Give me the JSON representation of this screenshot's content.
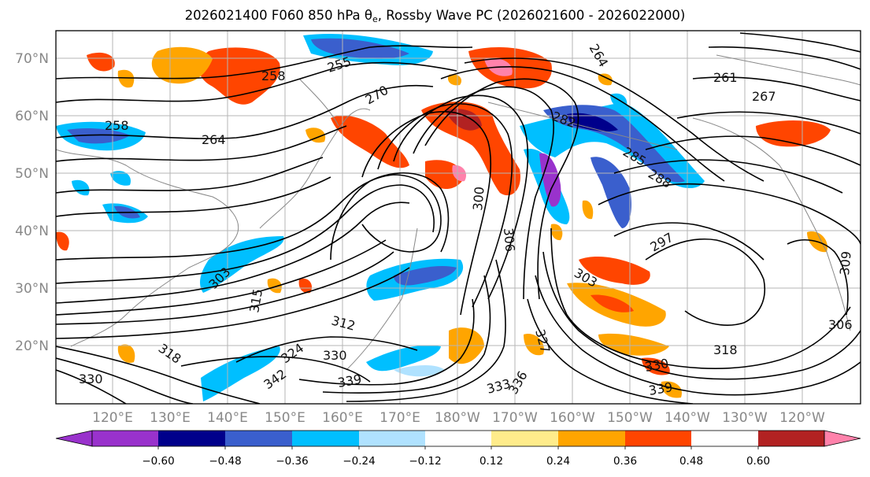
{
  "title": {
    "main": "2026021400 F060 850 hPa θ",
    "subscript": "e",
    "suffix": ", Rossby Wave PC (2026021600 - 2026022000)"
  },
  "lat_labels": [
    "70°N",
    "60°N",
    "50°N",
    "40°N",
    "30°N",
    "20°N"
  ],
  "lon_labels": [
    "120°E",
    "130°E",
    "140°E",
    "150°E",
    "160°E",
    "170°E",
    "180°W",
    "170°W",
    "160°W",
    "150°W",
    "140°W",
    "130°W",
    "120°W"
  ],
  "colorbar": {
    "colors": [
      "#9932CC",
      "#00008B",
      "#3A5FCD",
      "#00BFFF",
      "#B0E2FF",
      "#FFFFFF",
      "#FFEC8B",
      "#FFA500",
      "#FF4500",
      "#B22222",
      "#FF82AB"
    ],
    "ticks": [
      "−0.60",
      "−0.48",
      "−0.36",
      "−0.24",
      "−0.12",
      "0.12",
      "0.24",
      "0.36",
      "0.48",
      "0.60"
    ]
  },
  "contour_labels": [
    "258",
    "258",
    "255",
    "264",
    "264",
    "270",
    "261",
    "267",
    "282",
    "285",
    "288",
    "297",
    "300",
    "303",
    "303",
    "306",
    "306",
    "309",
    "312",
    "315",
    "318",
    "318",
    "324",
    "327",
    "330",
    "330",
    "330",
    "333",
    "336",
    "339",
    "339",
    "342"
  ]
}
